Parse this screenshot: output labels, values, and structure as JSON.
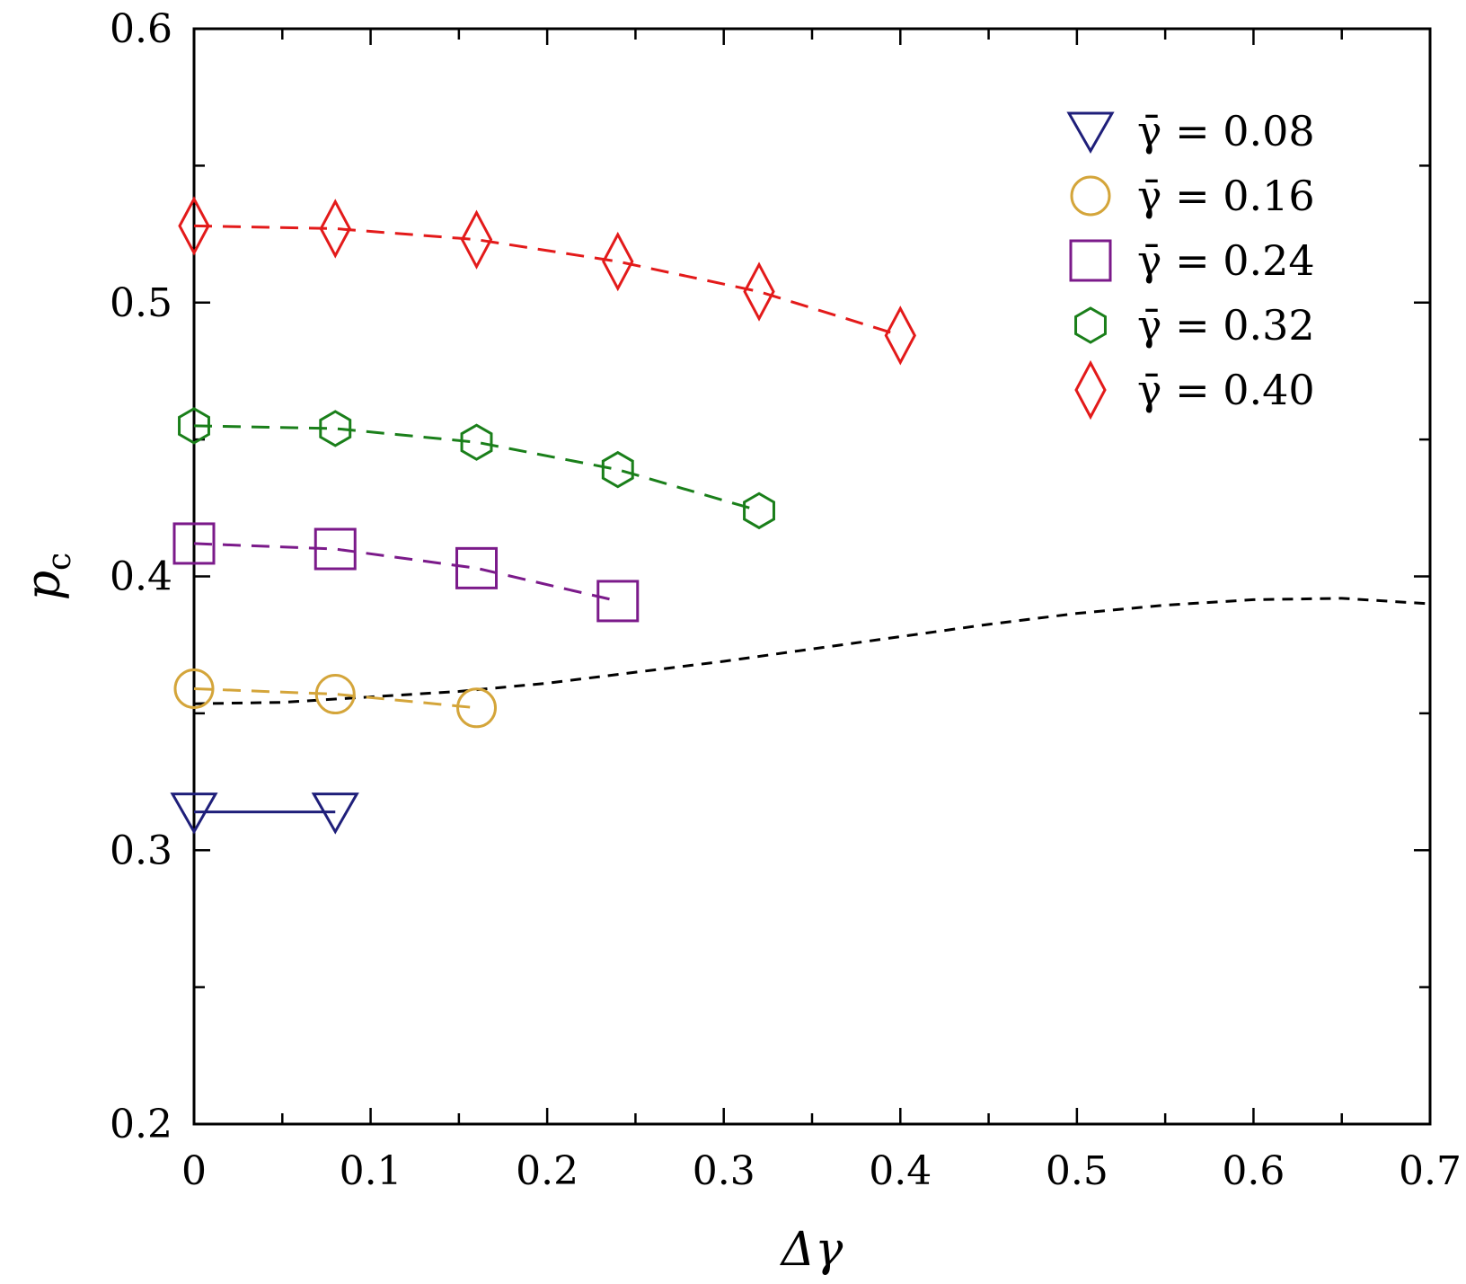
{
  "chart_data": {
    "type": "scatter",
    "xlabel": "Δγ",
    "ylabel": "p",
    "ylabel_subscript": "c",
    "xlim": [
      0,
      0.7
    ],
    "ylim": [
      0.2,
      0.6
    ],
    "x_ticks": [
      0,
      0.1,
      0.2,
      0.3,
      0.4,
      0.5,
      0.6,
      0.7
    ],
    "x_tick_labels": [
      "0",
      "0.1",
      "0.2",
      "0.3",
      "0.4",
      "0.5",
      "0.6",
      "0.7"
    ],
    "y_ticks": [
      0.2,
      0.3,
      0.4,
      0.5,
      0.6
    ],
    "y_tick_labels": [
      "0.2",
      "0.3",
      "0.4",
      "0.5",
      "0.6"
    ],
    "grid": false,
    "legend_position": "top-right",
    "series": [
      {
        "name": "γ̄ = 0.08",
        "color": "#1f1f7a",
        "marker": "triangle-down",
        "line": "solid",
        "x": [
          0,
          0.08
        ],
        "y": [
          0.314,
          0.314
        ]
      },
      {
        "name": "γ̄ = 0.16",
        "color": "#d4a53a",
        "marker": "circle",
        "line": "dashed",
        "x": [
          0,
          0.08,
          0.16
        ],
        "y": [
          0.359,
          0.357,
          0.352
        ]
      },
      {
        "name": "γ̄ = 0.24",
        "color": "#7b1a8a",
        "marker": "square",
        "line": "dashed",
        "x": [
          0,
          0.08,
          0.16,
          0.24
        ],
        "y": [
          0.412,
          0.41,
          0.403,
          0.391
        ]
      },
      {
        "name": "γ̄ = 0.32",
        "color": "#1a7f1a",
        "marker": "hexagon",
        "line": "dashed",
        "x": [
          0,
          0.08,
          0.16,
          0.24,
          0.32
        ],
        "y": [
          0.455,
          0.454,
          0.449,
          0.439,
          0.424
        ]
      },
      {
        "name": "γ̄ = 0.40",
        "color": "#e31a1a",
        "marker": "diamond",
        "line": "dashed",
        "x": [
          0,
          0.08,
          0.16,
          0.24,
          0.32,
          0.4
        ],
        "y": [
          0.528,
          0.527,
          0.523,
          0.515,
          0.504,
          0.488
        ]
      }
    ],
    "reference_curve": {
      "color": "#000000",
      "line": "dashed",
      "x": [
        0,
        0.05,
        0.1,
        0.15,
        0.2,
        0.25,
        0.3,
        0.35,
        0.4,
        0.45,
        0.5,
        0.55,
        0.6,
        0.65,
        0.7
      ],
      "y": [
        0.3535,
        0.354,
        0.356,
        0.358,
        0.361,
        0.365,
        0.369,
        0.3735,
        0.378,
        0.3825,
        0.3865,
        0.3895,
        0.3915,
        0.392,
        0.39
      ]
    }
  }
}
